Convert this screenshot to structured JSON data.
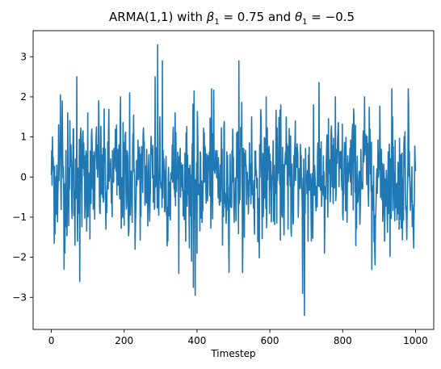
{
  "chart_data": {
    "type": "line",
    "title_parts": {
      "prefix": "ARMA(1,1) with ",
      "beta_symbol": "β",
      "beta_sub": "1",
      "beta_eq": " = 0.75 and ",
      "theta_symbol": "θ",
      "theta_sub": "1",
      "theta_eq": " = −0.5"
    },
    "xlabel": "Timestep",
    "ylabel": "",
    "xlim": [
      -50,
      1050
    ],
    "ylim": [
      -3.8,
      3.65
    ],
    "x_ticks": [
      0,
      200,
      400,
      600,
      800,
      1000
    ],
    "y_ticks": [
      -3,
      -2,
      -1,
      0,
      1,
      2,
      3
    ],
    "y_tick_labels": [
      "−3",
      "−2",
      "−1",
      "0",
      "1",
      "2",
      "3"
    ],
    "grid": false,
    "legend": "none",
    "series": [
      {
        "color": "#1f77b4",
        "n_points": 1001,
        "x_start": 0,
        "x_step": 1,
        "anchor_points": [
          [
            0,
            0.05
          ],
          [
            5,
            0.5
          ],
          [
            8,
            -1.65
          ],
          [
            15,
            0.3
          ],
          [
            20,
            1.3
          ],
          [
            25,
            2.05
          ],
          [
            30,
            1.9
          ],
          [
            35,
            -2.3
          ],
          [
            45,
            1.6
          ],
          [
            55,
            0.2
          ],
          [
            60,
            1.2
          ],
          [
            65,
            -1.7
          ],
          [
            70,
            2.5
          ],
          [
            78,
            -2.6
          ],
          [
            85,
            0.8
          ],
          [
            100,
            1.6
          ],
          [
            115,
            -0.8
          ],
          [
            130,
            1.9
          ],
          [
            150,
            -1.3
          ],
          [
            170,
            0.5
          ],
          [
            190,
            2.0
          ],
          [
            200,
            -1.2
          ],
          [
            215,
            2.1
          ],
          [
            230,
            -1.8
          ],
          [
            250,
            0.5
          ],
          [
            270,
            -1.1
          ],
          [
            285,
            2.5
          ],
          [
            292,
            3.3
          ],
          [
            298,
            1.5
          ],
          [
            305,
            2.9
          ],
          [
            320,
            -1.6
          ],
          [
            340,
            1.6
          ],
          [
            355,
            -0.5
          ],
          [
            370,
            1.1
          ],
          [
            385,
            -2.1
          ],
          [
            390,
            -2.75
          ],
          [
            395,
            -2.95
          ],
          [
            400,
            -1.9
          ],
          [
            420,
            1.1
          ],
          [
            440,
            2.2
          ],
          [
            470,
            -1.7
          ],
          [
            500,
            0.5
          ],
          [
            515,
            2.9
          ],
          [
            530,
            -1.5
          ],
          [
            550,
            1.5
          ],
          [
            570,
            -1.2
          ],
          [
            590,
            2.0
          ],
          [
            610,
            -1.1
          ],
          [
            630,
            1.8
          ],
          [
            650,
            -1.3
          ],
          [
            670,
            1.4
          ],
          [
            690,
            -2.9
          ],
          [
            695,
            -3.45
          ],
          [
            705,
            -1.6
          ],
          [
            720,
            1.8
          ],
          [
            750,
            -1.9
          ],
          [
            780,
            2.0
          ],
          [
            800,
            -0.9
          ],
          [
            830,
            1.7
          ],
          [
            860,
            2.0
          ],
          [
            880,
            -2.3
          ],
          [
            900,
            0.6
          ],
          [
            915,
            -1.6
          ],
          [
            935,
            2.2
          ],
          [
            955,
            -1.3
          ],
          [
            980,
            2.2
          ],
          [
            1000,
            0.15
          ]
        ]
      }
    ]
  }
}
